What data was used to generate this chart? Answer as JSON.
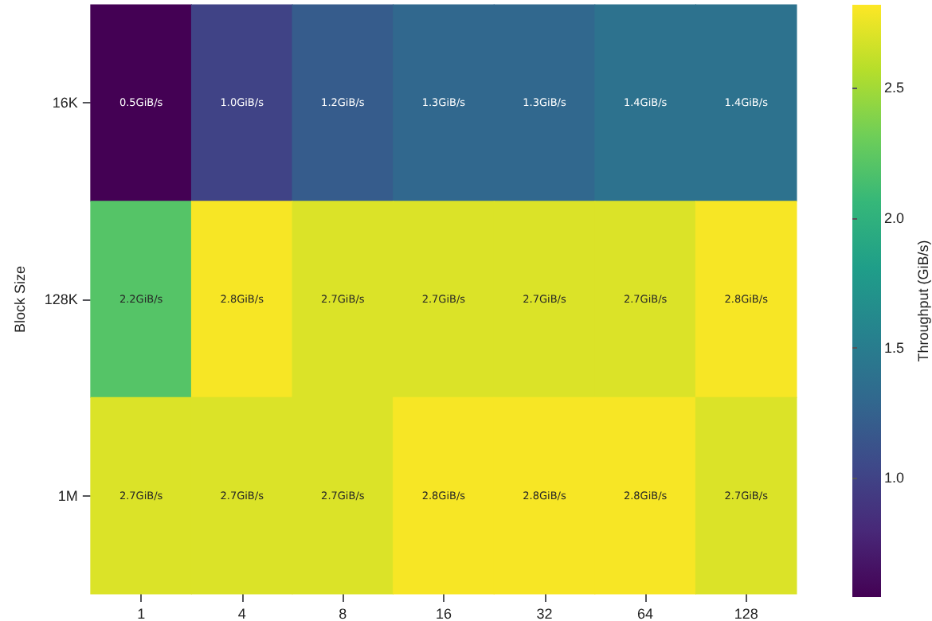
{
  "chart_data": {
    "type": "heatmap",
    "ylabel": "Block Size",
    "clabel": "Throughput (GiB/s)",
    "categories": [
      "1",
      "4",
      "8",
      "16",
      "32",
      "64",
      "128"
    ],
    "y_categories": [
      "16K",
      "128K",
      "1M"
    ],
    "cells": [
      [
        0.5,
        1.0,
        1.2,
        1.3,
        1.3,
        1.4,
        1.4
      ],
      [
        2.2,
        2.8,
        2.7,
        2.7,
        2.7,
        2.7,
        2.8
      ],
      [
        2.7,
        2.7,
        2.7,
        2.8,
        2.8,
        2.8,
        2.7
      ]
    ],
    "cell_labels": [
      [
        "0.5GiB/s",
        "1.0GiB/s",
        "1.2GiB/s",
        "1.3GiB/s",
        "1.3GiB/s",
        "1.4GiB/s",
        "1.4GiB/s"
      ],
      [
        "2.2GiB/s",
        "2.8GiB/s",
        "2.7GiB/s",
        "2.7GiB/s",
        "2.7GiB/s",
        "2.7GiB/s",
        "2.8GiB/s"
      ],
      [
        "2.7GiB/s",
        "2.7GiB/s",
        "2.7GiB/s",
        "2.8GiB/s",
        "2.8GiB/s",
        "2.8GiB/s",
        "2.7GiB/s"
      ]
    ],
    "clim": [
      0.54,
      2.82
    ],
    "cticks": [
      {
        "value": 1,
        "label": "1.0"
      },
      1.5,
      {
        "value": 2,
        "label": "2.0"
      },
      2.5
    ]
  }
}
